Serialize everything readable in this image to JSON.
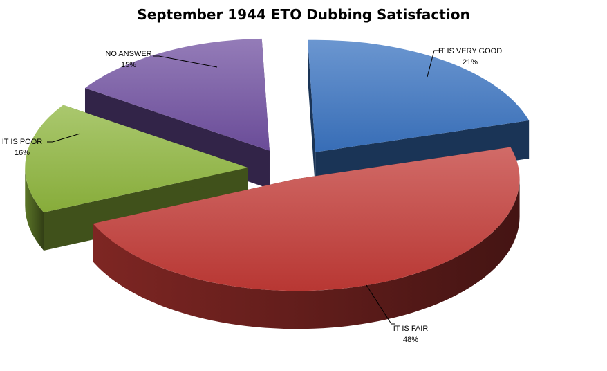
{
  "chart_data": {
    "type": "pie",
    "title": "September 1944 ETO Dubbing Satisfaction",
    "categories": [
      "IT IS VERY GOOD",
      "IT IS FAIR",
      "IT IS POOR",
      "NO ANSWER"
    ],
    "values": [
      21,
      48,
      16,
      15
    ],
    "value_labels": [
      "21%",
      "48%",
      "16%",
      "15%"
    ],
    "exploded": true,
    "three_d": true,
    "colors": {
      "IT IS VERY GOOD": "#3a73c0",
      "IT IS FAIR": "#c23a36",
      "IT IS POOR": "#8eb53d",
      "NO ANSWER": "#7050a0"
    }
  }
}
